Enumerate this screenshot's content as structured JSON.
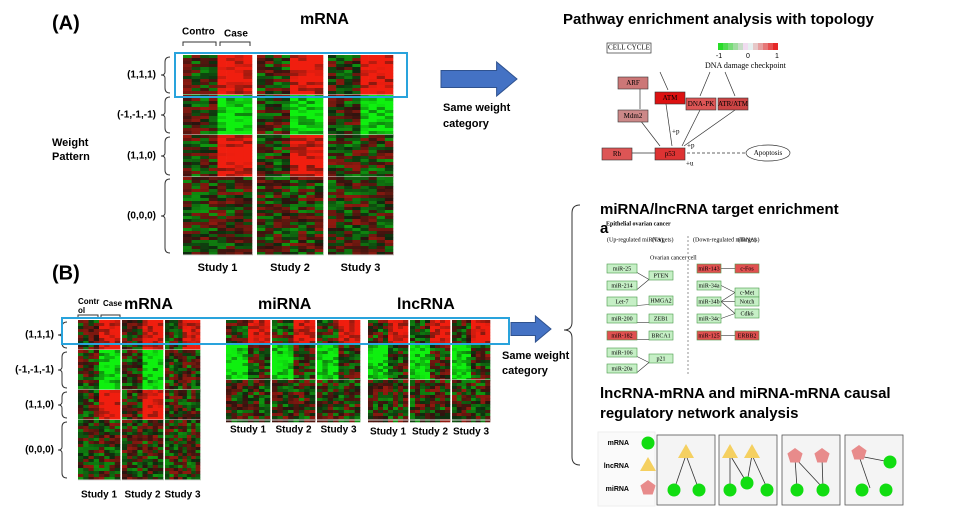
{
  "panel_a": {
    "label": "(A)",
    "title": "mRNA",
    "groups": [
      "Contro",
      "Case"
    ],
    "rows": [
      "(1,1,1)",
      "(-1,-1,-1)",
      "(1,1,0)",
      "(0,0,0)"
    ],
    "side": [
      "Weight",
      "Pattern"
    ],
    "studies": [
      "Study 1",
      "Study 2",
      "Study 3"
    ],
    "arrow_text": [
      "Same weight",
      "category"
    ]
  },
  "pathway": {
    "title": "Pathway enrichment analysis with topology",
    "box": "CELL CYCLE",
    "scale": [
      "-1",
      "0",
      "1"
    ],
    "checkpoint": "DNA damage checkpoint",
    "nodes": [
      "ARF",
      "Mdm2",
      "ATM",
      "DNA-PK",
      "ATR/ATM",
      "Rb",
      "p53",
      "Apoptosis"
    ],
    "edge_labels": [
      "+p",
      "+p",
      "+u"
    ]
  },
  "panel_b": {
    "label": "(B)",
    "titles": [
      "mRNA",
      "miRNA",
      "lncRNA"
    ],
    "control": [
      "Contr",
      "ol"
    ],
    "case": "Case",
    "rows": [
      "(1,1,1)",
      "(-1,-1,-1)",
      "(1,1,0)",
      "(0,0,0)"
    ],
    "studies": [
      "Study 1",
      "Study 2",
      "Study 3"
    ],
    "arrow_text": [
      "Same weight",
      "category"
    ]
  },
  "targets": {
    "title": [
      "miRNA/lncRNA target enrichment",
      "a"
    ],
    "header": "Epithelial ovarian cancer",
    "up": "(Up-regulated miRNA)",
    "targets_label": "(Targets)",
    "down": "(Down-regulated miRNA)",
    "cell": "Ovarian cancer cell",
    "up_mirnas": [
      "miR-25",
      "miR-214",
      "Let-7",
      "miR-200",
      "miR-182",
      "miR-106",
      "miR-20a"
    ],
    "up_targets": [
      "PTEN",
      "HMGA2",
      "ZEB1",
      "BRCA1",
      "p21"
    ],
    "down_mirnas": [
      "miR-143",
      "miR-34a",
      "miR-34b",
      "miR-34c",
      "miR-125"
    ],
    "down_targets": [
      "c-Fos",
      "c-Met",
      "Notch",
      "Cdk6",
      "ERBB2"
    ]
  },
  "network": {
    "title": [
      "lncRNA-mRNA and miRNA-mRNA causal",
      "regulatory network analysis"
    ],
    "legend": [
      "mRNA",
      "lncRNA",
      "miRNA"
    ]
  }
}
